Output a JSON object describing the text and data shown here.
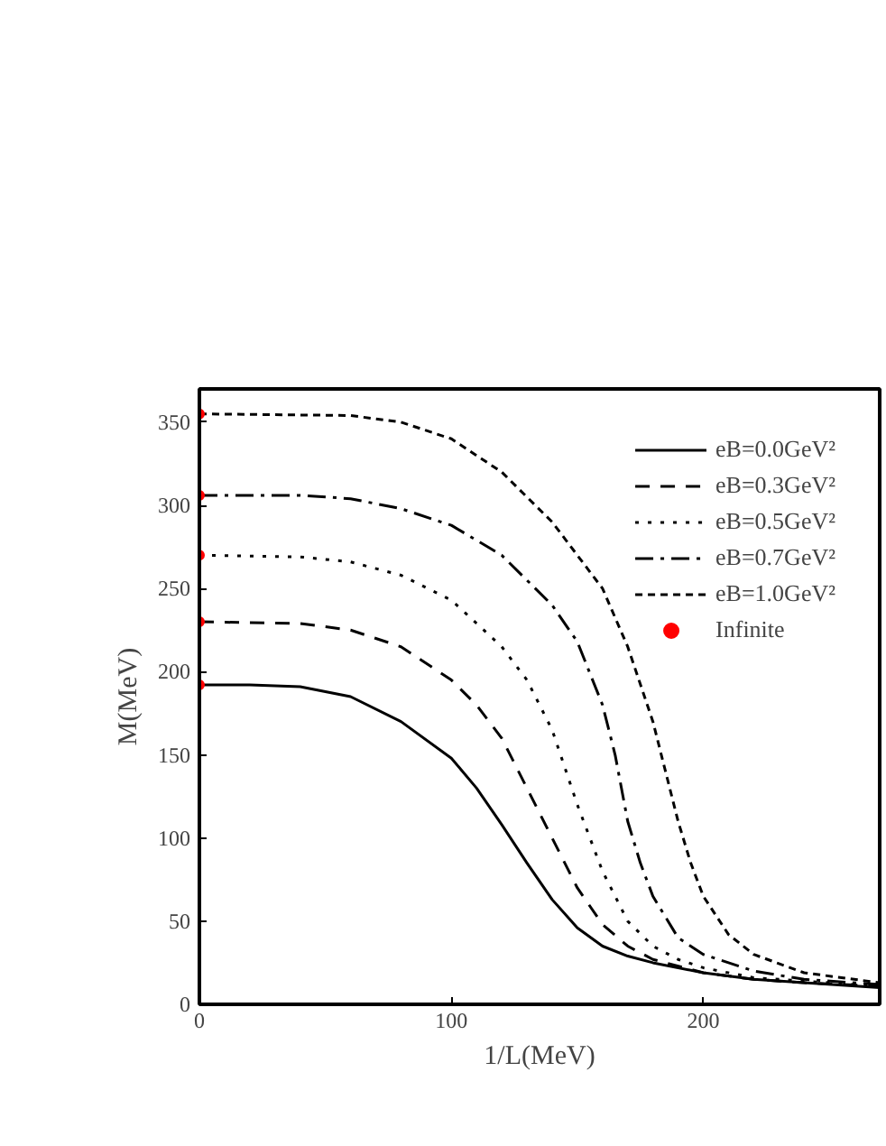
{
  "chart_data": {
    "type": "line",
    "xlabel": "1/L(MeV)",
    "ylabel": "M(MeV)",
    "xlim": [
      0,
      270
    ],
    "ylim": [
      0,
      370
    ],
    "xticks": [
      0,
      100,
      200
    ],
    "yticks": [
      0,
      50,
      100,
      150,
      200,
      250,
      300,
      350
    ],
    "grid": false,
    "legend": "top right",
    "series": [
      {
        "name": "eB=0.0GeV²",
        "color": "#000000",
        "line_style": "solid",
        "x": [
          0,
          20,
          40,
          60,
          80,
          100,
          110,
          120,
          130,
          140,
          150,
          160,
          170,
          180,
          200,
          220,
          240,
          270
        ],
        "values": [
          192,
          192,
          191,
          185,
          170,
          148,
          130,
          108,
          85,
          63,
          46,
          35,
          29,
          25,
          19,
          15,
          13,
          10
        ]
      },
      {
        "name": "eB=0.3GeV²",
        "color": "#000000",
        "line_style": "dashed",
        "x": [
          0,
          40,
          60,
          80,
          100,
          110,
          120,
          130,
          140,
          150,
          160,
          170,
          180,
          200,
          220,
          240,
          270
        ],
        "values": [
          230,
          229,
          225,
          215,
          195,
          180,
          160,
          130,
          100,
          70,
          48,
          35,
          27,
          19,
          15,
          13,
          11
        ]
      },
      {
        "name": "eB=0.5GeV²",
        "color": "#000000",
        "line_style": "dotted",
        "x": [
          0,
          40,
          60,
          80,
          100,
          120,
          130,
          140,
          150,
          155,
          160,
          170,
          180,
          190,
          200,
          220,
          240,
          270
        ],
        "values": [
          270,
          269,
          266,
          258,
          243,
          215,
          195,
          165,
          120,
          100,
          80,
          50,
          35,
          27,
          22,
          16,
          14,
          11
        ]
      },
      {
        "name": "eB=0.7GeV²",
        "color": "#000000",
        "line_style": "dashdot",
        "x": [
          0,
          40,
          60,
          80,
          100,
          120,
          140,
          150,
          160,
          165,
          170,
          175,
          180,
          190,
          200,
          220,
          240,
          270
        ],
        "values": [
          306,
          306,
          304,
          298,
          288,
          270,
          240,
          218,
          180,
          150,
          110,
          85,
          65,
          40,
          30,
          20,
          15,
          12
        ]
      },
      {
        "name": "eB=1.0GeV²",
        "color": "#000000",
        "line_style": "shortdash",
        "x": [
          0,
          60,
          80,
          100,
          120,
          140,
          160,
          170,
          180,
          185,
          190,
          195,
          200,
          210,
          220,
          240,
          270
        ],
        "values": [
          355,
          354,
          350,
          340,
          320,
          290,
          250,
          215,
          170,
          140,
          110,
          85,
          65,
          42,
          30,
          19,
          13
        ]
      },
      {
        "name": "Infinite",
        "type": "scatter",
        "marker": "circle",
        "color": "#ff0000",
        "x": [
          0,
          0,
          0,
          0,
          0
        ],
        "values": [
          192,
          230,
          270,
          306,
          355
        ]
      }
    ]
  }
}
